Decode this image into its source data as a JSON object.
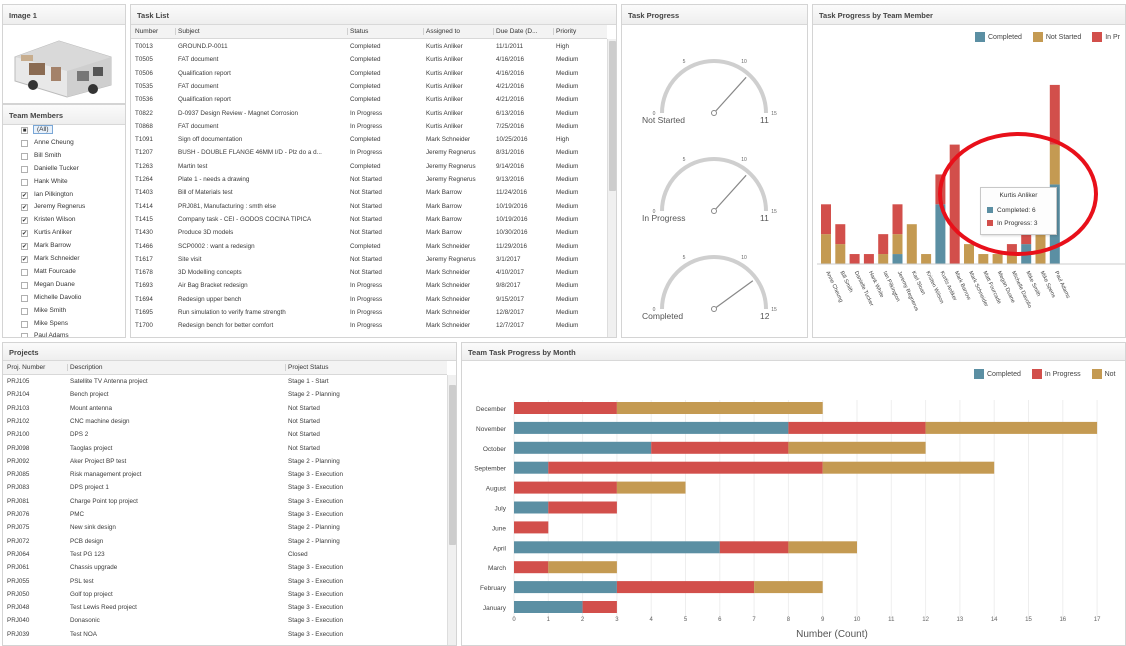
{
  "panels": {
    "image": "Image 1",
    "team": "Team Members",
    "tasks": "Task List",
    "gauges": "Task Progress",
    "member_chart": "Task Progress by Team Member",
    "projects": "Projects",
    "month_chart": "Team Task Progress by Month"
  },
  "team_members": [
    {
      "name": "(All)",
      "checked": "■",
      "selected": true
    },
    {
      "name": "Anne Cheung",
      "checked": ""
    },
    {
      "name": "Bill Smith",
      "checked": ""
    },
    {
      "name": "Danielle Tucker",
      "checked": ""
    },
    {
      "name": "Hank White",
      "checked": ""
    },
    {
      "name": "Ian Pilkington",
      "checked": "✔"
    },
    {
      "name": "Jeremy Regnerus",
      "checked": "✔"
    },
    {
      "name": "Kristen Wilson",
      "checked": "✔"
    },
    {
      "name": "Kurtis Anliker",
      "checked": "✔"
    },
    {
      "name": "Mark Barrow",
      "checked": "✔"
    },
    {
      "name": "Mark Schneider",
      "checked": "✔"
    },
    {
      "name": "Matt Fourcade",
      "checked": ""
    },
    {
      "name": "Megan Duane",
      "checked": ""
    },
    {
      "name": "Michelle Davolio",
      "checked": ""
    },
    {
      "name": "Mike Smith",
      "checked": ""
    },
    {
      "name": "Mike Spens",
      "checked": ""
    },
    {
      "name": "Paul Adams",
      "checked": ""
    }
  ],
  "task_columns": [
    "Number",
    "Subject",
    "Status",
    "Assigned to",
    "Due Date (D...",
    "Priority"
  ],
  "tasks": [
    [
      "T0013",
      "GROUND.P-0011",
      "Completed",
      "Kurtis Anliker",
      "11/1/2011",
      "High"
    ],
    [
      "T0505",
      "FAT document",
      "Completed",
      "Kurtis Anliker",
      "4/16/2016",
      "Medium"
    ],
    [
      "T0506",
      "Qualification report",
      "Completed",
      "Kurtis Anliker",
      "4/16/2016",
      "Medium"
    ],
    [
      "T0535",
      "FAT document",
      "Completed",
      "Kurtis Anliker",
      "4/21/2016",
      "Medium"
    ],
    [
      "T0536",
      "Qualification report",
      "Completed",
      "Kurtis Anliker",
      "4/21/2016",
      "Medium"
    ],
    [
      "T0822",
      "D-0937 Design Review - Magnet Corrosion",
      "In Progress",
      "Kurtis Anliker",
      "6/13/2016",
      "Medium"
    ],
    [
      "T0868",
      "FAT document",
      "In Progress",
      "Kurtis Anliker",
      "7/25/2016",
      "Medium"
    ],
    [
      "T1091",
      "Sign off documentation",
      "Completed",
      "Mark Schneider",
      "10/25/2016",
      "High"
    ],
    [
      "T1207",
      "BUSH - DOUBLE FLANGE 46MM I/D - Plz do a d...",
      "In Progress",
      "Jeremy Regnerus",
      "8/31/2016",
      "Medium"
    ],
    [
      "T1263",
      "Martin test",
      "Completed",
      "Jeremy Regnerus",
      "9/14/2016",
      "Medium"
    ],
    [
      "T1264",
      "Plate 1 - needs a drawing",
      "Not Started",
      "Jeremy Regnerus",
      "9/13/2016",
      "Medium"
    ],
    [
      "T1403",
      "Bill of Materials test",
      "Not Started",
      "Mark Barrow",
      "11/24/2016",
      "Medium"
    ],
    [
      "T1414",
      "PRJ081, Manufacturing : smth else",
      "Not Started",
      "Mark Barrow",
      "10/19/2016",
      "Medium"
    ],
    [
      "T1415",
      "Company task - CEI - GODOS COCINA TÍPICA",
      "Not Started",
      "Mark Barrow",
      "10/19/2016",
      "Medium"
    ],
    [
      "T1430",
      "Produce 3D models",
      "Not Started",
      "Mark Barrow",
      "10/30/2016",
      "Medium"
    ],
    [
      "T1466",
      "SCP0002 : want a redesign",
      "Completed",
      "Mark Schneider",
      "11/29/2016",
      "Medium"
    ],
    [
      "T1617",
      "Site visit",
      "Not Started",
      "Jeremy Regnerus",
      "3/1/2017",
      "Medium"
    ],
    [
      "T1678",
      "3D Modelling concepts",
      "Not Started",
      "Mark Schneider",
      "4/10/2017",
      "Medium"
    ],
    [
      "T1693",
      "Air Bag Bracket redesign",
      "In Progress",
      "Mark Schneider",
      "9/8/2017",
      "Medium"
    ],
    [
      "T1694",
      "Redesign upper bench",
      "In Progress",
      "Mark Schneider",
      "9/15/2017",
      "Medium"
    ],
    [
      "T1695",
      "Run simulation to verify frame strength",
      "In Progress",
      "Mark Schneider",
      "12/8/2017",
      "Medium"
    ],
    [
      "T1700",
      "Redesign bench for better comfort",
      "In Progress",
      "Mark Schneider",
      "12/7/2017",
      "Medium"
    ]
  ],
  "gauges": [
    {
      "label": "Not Started",
      "value": 11,
      "max": 15
    },
    {
      "label": "In Progress",
      "value": 11,
      "max": 15
    },
    {
      "label": "Completed",
      "value": 12,
      "max": 15
    }
  ],
  "gauge_ticks": [
    "0",
    "5",
    "10",
    "15"
  ],
  "project_columns": [
    "Proj. Number",
    "Description",
    "Project Status"
  ],
  "projects": [
    [
      "PRJ105",
      "Satellite TV Antenna project",
      "Stage 1 - Start"
    ],
    [
      "PRJ104",
      "Bench project",
      "Stage 2 - Planning"
    ],
    [
      "PRJ103",
      "Mount antenna",
      "Not Started"
    ],
    [
      "PRJ102",
      "CNC machine design",
      "Not Started"
    ],
    [
      "PRJ100",
      "DPS 2",
      "Not Started"
    ],
    [
      "PRJ098",
      "Taoglas project",
      "Not Started"
    ],
    [
      "PRJ092",
      "Aker Project BP test",
      "Stage 2 - Planning"
    ],
    [
      "PRJ085",
      "Risk management project",
      "Stage 3 - Execution"
    ],
    [
      "PRJ083",
      "DPS project 1",
      "Stage 3 - Execution"
    ],
    [
      "PRJ081",
      "Charge Point top project",
      "Stage 3 - Execution"
    ],
    [
      "PRJ076",
      "PMC",
      "Stage 3 - Execution"
    ],
    [
      "PRJ075",
      "New sink design",
      "Stage 2 - Planning"
    ],
    [
      "PRJ072",
      "PCB design",
      "Stage 2 - Planning"
    ],
    [
      "PRJ064",
      "Test PG 123",
      "Closed"
    ],
    [
      "PRJ061",
      "Chassis upgrade",
      "Stage 3 - Execution"
    ],
    [
      "PRJ055",
      "PSL test",
      "Stage 3 - Execution"
    ],
    [
      "PRJ050",
      "Golf top project",
      "Stage 3 - Execution"
    ],
    [
      "PRJ048",
      "Test Lewis Reed project",
      "Stage 3 - Execution"
    ],
    [
      "PRJ040",
      "Donasonic",
      "Stage 3 - Execution"
    ],
    [
      "PRJ039",
      "Test NOA",
      "Stage 3 - Execution"
    ]
  ],
  "colors": {
    "completed": "#5b8fa3",
    "in_progress": "#d24f4b",
    "not_started": "#c49a52"
  },
  "legend_member": [
    "Completed",
    "Not Started",
    "In Pr"
  ],
  "legend_month": [
    "Completed",
    "In Progress",
    "Not"
  ],
  "tooltip": {
    "title": "Kurtis Anliker",
    "line1": "Completed: 6",
    "line2": "In Progress: 3"
  },
  "chart_data": [
    {
      "type": "bar",
      "title": "Task Progress by Team Member",
      "categories": [
        "Anne Cheung",
        "Bill Smith",
        "Danielle Tucker",
        "Hank White",
        "Ian Pilkington",
        "Jeremy Regnerus",
        "Karl Sloan",
        "Kristen Wilson",
        "Kurtis Anliker",
        "Mark Barrow",
        "Mark Schneider",
        "Matt Fourcade",
        "Megan Duane",
        "Michelle Davolio",
        "Mike Smith",
        "Mike Spens",
        "Paul Adams"
      ],
      "stacked": true,
      "series": [
        {
          "name": "Completed",
          "values": [
            0,
            0,
            0,
            0,
            0,
            1,
            0,
            0,
            6,
            0,
            0,
            0,
            0,
            0,
            2,
            0,
            8
          ]
        },
        {
          "name": "Not Started",
          "values": [
            3,
            2,
            0,
            0,
            1,
            2,
            4,
            1,
            0,
            0,
            2,
            1,
            1,
            1,
            0,
            4,
            4
          ]
        },
        {
          "name": "In Progress",
          "values": [
            3,
            2,
            1,
            1,
            2,
            3,
            0,
            0,
            3,
            12,
            0,
            0,
            0,
            1,
            4,
            0,
            6
          ]
        }
      ],
      "ylim": [
        0,
        20
      ],
      "legend": "top-right"
    },
    {
      "type": "bar",
      "orientation": "horizontal",
      "stacked": true,
      "title": "Team Task Progress by Month",
      "categories": [
        "December",
        "November",
        "October",
        "September",
        "August",
        "July",
        "June",
        "April",
        "March",
        "February",
        "January"
      ],
      "series": [
        {
          "name": "Completed",
          "values": [
            0,
            8,
            4,
            1,
            0,
            1,
            0,
            6,
            0,
            3,
            2
          ]
        },
        {
          "name": "In Progress",
          "values": [
            3,
            4,
            4,
            8,
            3,
            2,
            1,
            2,
            1,
            4,
            1
          ]
        },
        {
          "name": "Not Started",
          "values": [
            6,
            5,
            4,
            5,
            2,
            0,
            0,
            2,
            2,
            2,
            0
          ]
        }
      ],
      "xlabel": "Number (Count)",
      "xlim": [
        0,
        17
      ],
      "x_ticks": [
        "0",
        "1",
        "2",
        "3",
        "4",
        "5",
        "6",
        "7",
        "8",
        "9",
        "10",
        "11",
        "12",
        "13",
        "14",
        "15",
        "16",
        "17"
      ],
      "legend": "top-right"
    }
  ]
}
